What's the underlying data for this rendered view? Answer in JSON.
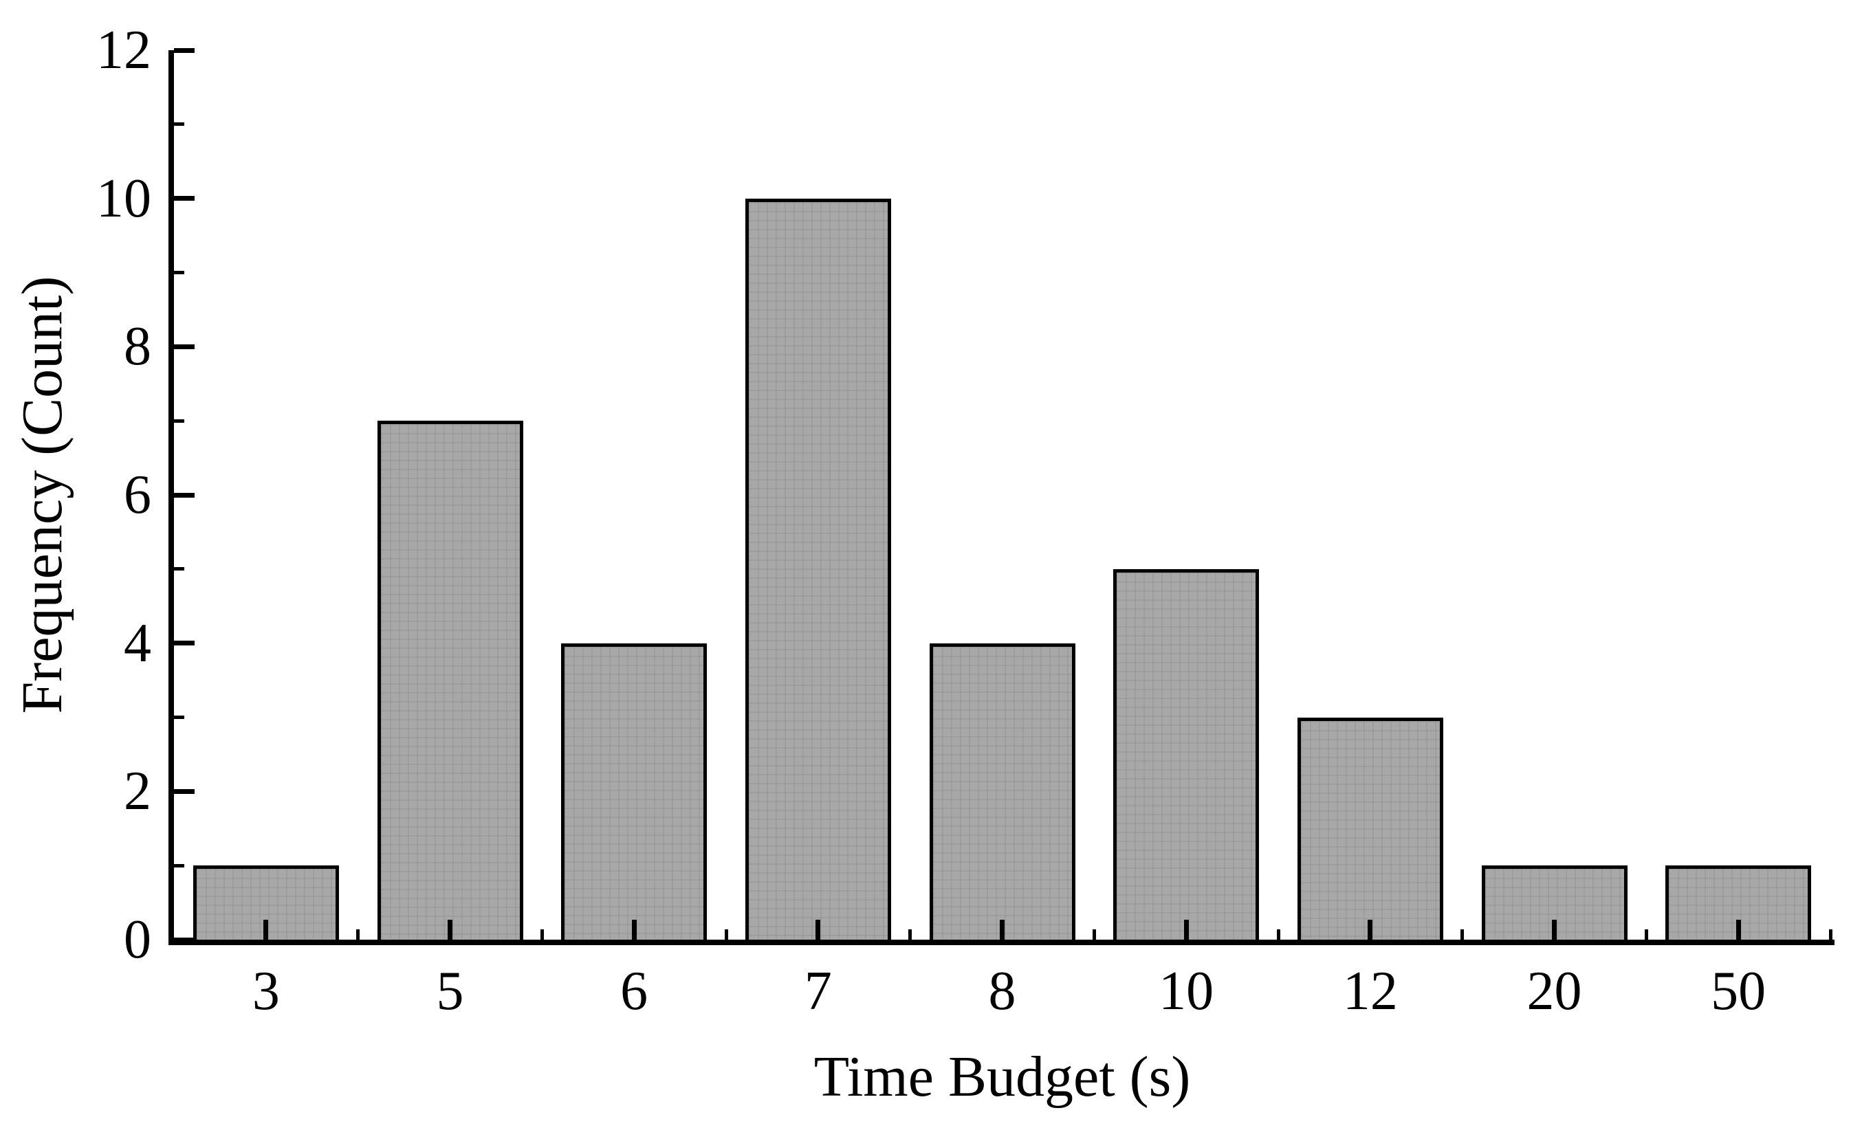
{
  "chart_data": {
    "type": "bar",
    "title": "",
    "categories": [
      "3",
      "5",
      "6",
      "7",
      "8",
      "10",
      "12",
      "20",
      "50"
    ],
    "values": [
      1,
      7,
      4,
      10,
      4,
      5,
      3,
      1,
      1
    ],
    "xlabel": "Time Budget (s)",
    "ylabel": "Frequency (Count)",
    "ylim": [
      0,
      12
    ],
    "y_major_ticks": [
      0,
      2,
      4,
      6,
      8,
      10,
      12
    ],
    "y_minor_step": 1,
    "x_tick_style": "major ticks inside at bar centers, minor ticks inside at slot boundaries",
    "grid": "off",
    "legend": "none",
    "bar_fill_color": "#a8a8a8",
    "bar_edge_color": "#000000",
    "axis_color": "#000000",
    "text_color": "#000000",
    "background_color": "#ffffff"
  }
}
